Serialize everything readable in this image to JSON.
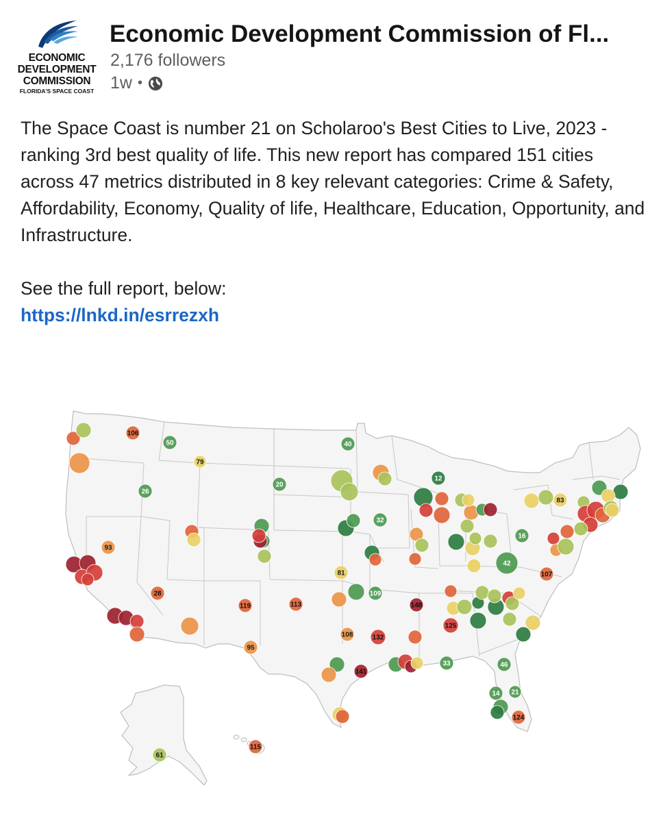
{
  "header": {
    "logo_lines": [
      "ECONOMIC",
      "DEVELOPMENT",
      "COMMISSION",
      "FLORIDA'S SPACE COAST"
    ],
    "org_name": "Economic Development Commission of Fl...",
    "followers": "2,176 followers",
    "time": "1w",
    "separator": "•",
    "visibility_icon": "globe-icon"
  },
  "post": {
    "paragraph": "The Space Coast is number 21 on Scholaroo's Best Cities to Live, 2023 - ranking 3rd best quality of life. This new report has compared 151 cities across 47 metrics distributed in 8 key relevant categories: Crime & Safety, Affordability, Economy, Quality of life, Healthcare, Education, Opportunity, and Infrastructure.",
    "see_more": "See the full report, below:",
    "link": "https://lnkd.in/esrrezxh"
  },
  "map": {
    "colors": {
      "dark_green": "#2e7d43",
      "green": "#4f9a52",
      "yellow_green": "#a9c35a",
      "yellow": "#e8d066",
      "orange": "#ec9548",
      "red_orange": "#e0653a",
      "red": "#d43f3a",
      "dark_red": "#9e2430"
    },
    "labels": [
      "106",
      "50",
      "79",
      "26",
      "20",
      "40",
      "12",
      "32",
      "83",
      "16",
      "42",
      "107",
      "93",
      "81",
      "28",
      "119",
      "113",
      "109",
      "148",
      "125",
      "108",
      "132",
      "95",
      "141",
      "33",
      "46",
      "14",
      "21",
      "124",
      "115",
      "61"
    ]
  }
}
